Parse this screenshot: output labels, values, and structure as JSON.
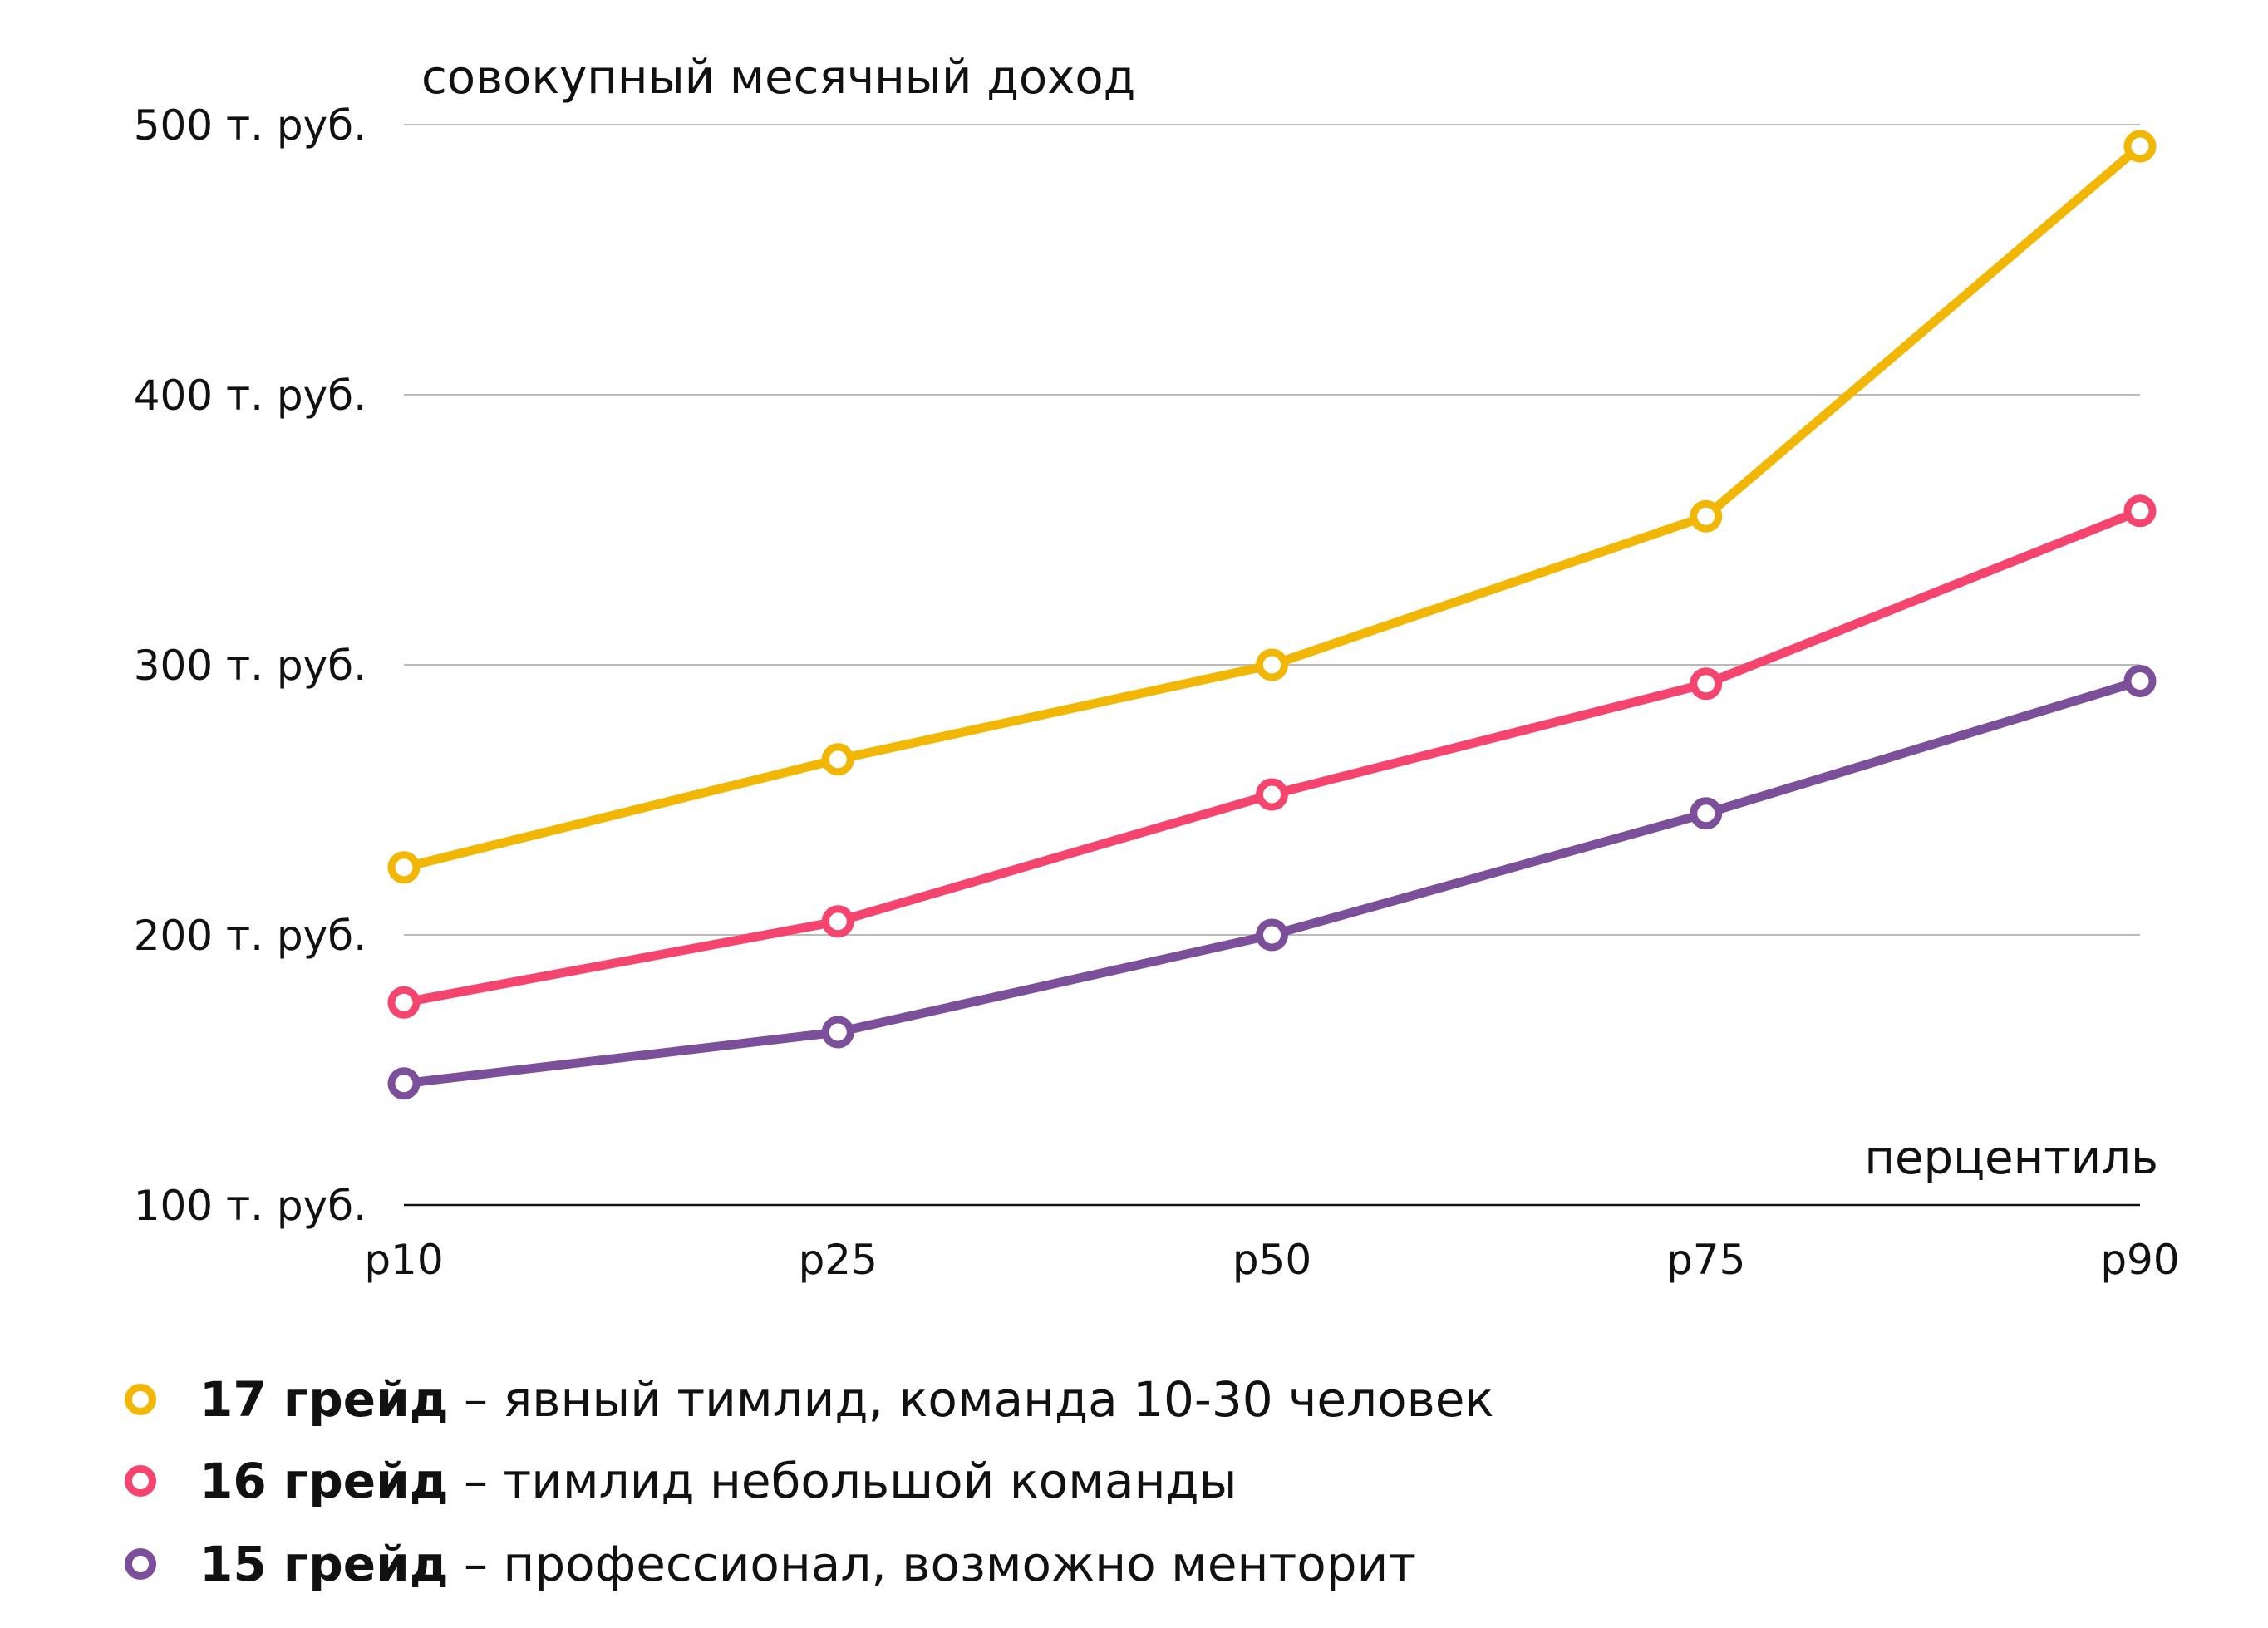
{
  "chart_data": {
    "type": "line",
    "ylabel": "совокупный месячный доход",
    "xlabel": "перцентиль",
    "categories": [
      "p10",
      "p25",
      "p50",
      "p75",
      "p90"
    ],
    "ylim": [
      100,
      500
    ],
    "yticks": [
      100,
      200,
      300,
      400,
      500
    ],
    "ytick_labels": [
      "100 т. руб.",
      "200 т. руб.",
      "300 т. руб.",
      "400 т. руб.",
      "500 т. руб."
    ],
    "grid": true,
    "legend_position": "bottom-left",
    "series": [
      {
        "name": "17 грейд",
        "desc": " – явный тимлид, команда 10-30 человек",
        "color": "#F2B705",
        "values": [
          225,
          265,
          300,
          355,
          492
        ]
      },
      {
        "name": "16 грейд",
        "desc": " – тимлид небольшой команды",
        "color": "#F5456E",
        "values": [
          175,
          205,
          252,
          293,
          357
        ]
      },
      {
        "name": "15 грейд",
        "desc": " – профессионал, возможно менторит",
        "color": "#7B4F9A",
        "values": [
          145,
          164,
          200,
          245,
          294
        ]
      }
    ]
  }
}
